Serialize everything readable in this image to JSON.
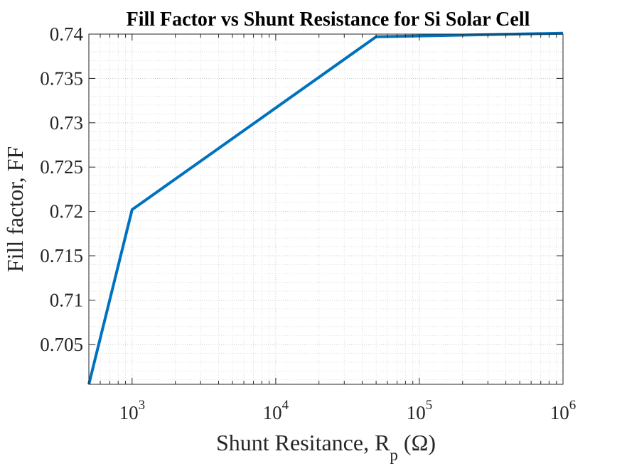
{
  "chart_data": {
    "type": "line",
    "title": "Fill Factor vs Shunt Resistance for Si Solar Cell",
    "xlabel": {
      "prefix": "Shunt Resitance, R",
      "subscript": "p",
      "suffix": " (Ω)"
    },
    "ylabel": "Fill factor, FF",
    "xscale": "log",
    "xlim": [
      500,
      1000000
    ],
    "ylim": [
      0.7005,
      0.74
    ],
    "grid": true,
    "minor_grid": true,
    "x_ticks": [
      {
        "base": "10",
        "exp": "3",
        "value": 1000
      },
      {
        "base": "10",
        "exp": "4",
        "value": 10000
      },
      {
        "base": "10",
        "exp": "5",
        "value": 100000
      },
      {
        "base": "10",
        "exp": "6",
        "value": 1000000
      }
    ],
    "y_ticks": [
      {
        "label": "0.705",
        "value": 0.705
      },
      {
        "label": "0.71",
        "value": 0.71
      },
      {
        "label": "0.715",
        "value": 0.715
      },
      {
        "label": "0.72",
        "value": 0.72
      },
      {
        "label": "0.725",
        "value": 0.725
      },
      {
        "label": "0.73",
        "value": 0.73
      },
      {
        "label": "0.735",
        "value": 0.735
      },
      {
        "label": "0.74",
        "value": 0.74
      }
    ],
    "series": [
      {
        "color": "#0072BD",
        "x": [
          500,
          1000,
          50000,
          1000000
        ],
        "y": [
          0.7005,
          0.7202,
          0.7397,
          0.7401
        ]
      }
    ]
  }
}
